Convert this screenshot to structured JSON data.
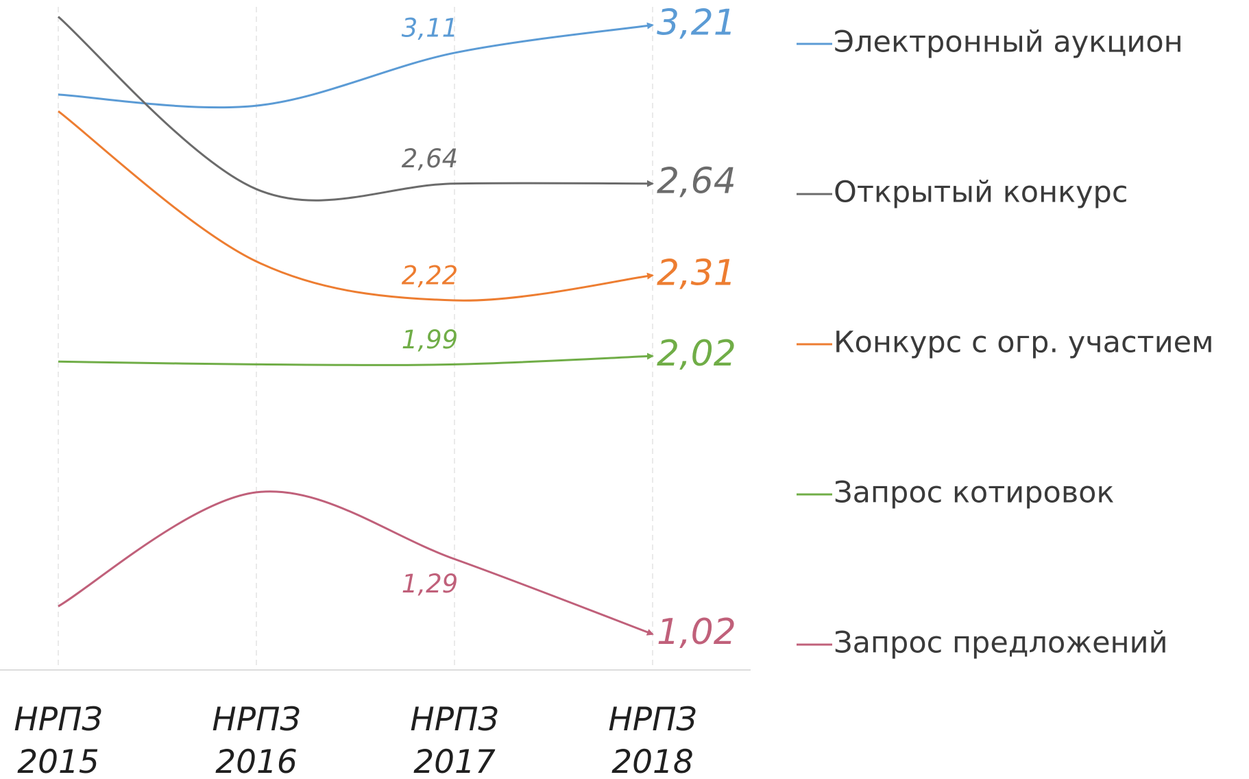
{
  "chart_data": {
    "type": "line",
    "categories": [
      "НРПЗ 2015",
      "НРПЗ 2016",
      "НРПЗ 2017",
      "НРПЗ 2018"
    ],
    "ylim": [
      0.8,
      3.3
    ],
    "series": [
      {
        "name": "Электронный аукцион",
        "color": "#5b9bd5",
        "values": [
          2.96,
          2.92,
          3.11,
          3.21
        ],
        "value_labels": [
          null,
          null,
          "3,11",
          "3,21"
        ]
      },
      {
        "name": "Открытый конкурс",
        "color": "#6b6b6b",
        "values": [
          3.24,
          2.62,
          2.64,
          2.64
        ],
        "value_labels": [
          null,
          null,
          "2,64",
          "2,64"
        ]
      },
      {
        "name": "Конкурс с огр. участием",
        "color": "#ed7d31",
        "values": [
          2.9,
          2.36,
          2.22,
          2.31
        ],
        "value_labels": [
          null,
          null,
          "2,22",
          "2,31"
        ]
      },
      {
        "name": "Запрос котировок",
        "color": "#70ad47",
        "values": [
          2.0,
          1.99,
          1.99,
          2.02
        ],
        "value_labels": [
          null,
          null,
          "1,99",
          "2,02"
        ]
      },
      {
        "name": "Запрос предложений",
        "color": "#c0607a",
        "values": [
          1.12,
          1.53,
          1.29,
          1.02
        ],
        "value_labels": [
          null,
          null,
          "1,29",
          "1,02"
        ]
      }
    ]
  }
}
